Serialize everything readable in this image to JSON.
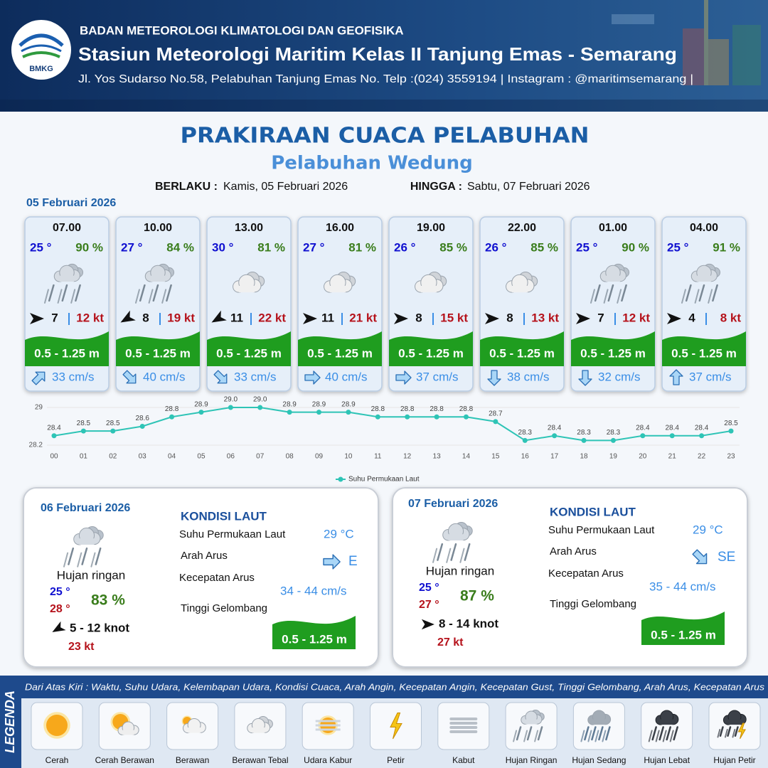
{
  "header": {
    "logo_text": "BMKG",
    "agency": "BADAN METEOROLOGI KLIMATOLOGI DAN GEOFISIKA",
    "station": "Stasiun Meteorologi Maritim Kelas II Tanjung Emas - Semarang",
    "address": "Jl. Yos Sudarso No.58, Pelabuhan Tanjung Emas No. Telp :(024) 3559194 | Instagram : @maritimsemarang |"
  },
  "title": "PRAKIRAAN CUACA PELABUHAN",
  "subtitle": "Pelabuhan Wedung",
  "validity": {
    "from_label": "BERLAKU :",
    "from": "Kamis, 05 Februari 2026",
    "to_label": "HINGGA :",
    "to": "Sabtu, 07 Februari 2026"
  },
  "today": {
    "date": "05 Februari 2026",
    "forecasts": [
      {
        "time": "07.00",
        "temperature": "25 °",
        "humidity": "90 %",
        "weather": "Hujan Ringan",
        "wind_direction": 0,
        "wind_speed": 7,
        "gust": "12 kt",
        "wave": "0.5 - 1.25 m",
        "current_direction": -45,
        "current_speed": "33 cm/s"
      },
      {
        "time": "10.00",
        "temperature": "27 °",
        "humidity": "84 %",
        "weather": "Hujan Ringan",
        "wind_direction": 150,
        "wind_speed": 8,
        "gust": "19 kt",
        "wave": "0.5 - 1.25 m",
        "current_direction": 45,
        "current_speed": "40 cm/s"
      },
      {
        "time": "13.00",
        "temperature": "30 °",
        "humidity": "81 %",
        "weather": "Berawan Tebal",
        "wind_direction": 150,
        "wind_speed": 11,
        "gust": "22 kt",
        "wave": "0.5 - 1.25 m",
        "current_direction": 45,
        "current_speed": "33 cm/s"
      },
      {
        "time": "16.00",
        "temperature": "27 °",
        "humidity": "81 %",
        "weather": "Berawan Tebal",
        "wind_direction": 0,
        "wind_speed": 11,
        "gust": "21 kt",
        "wave": "0.5 - 1.25 m",
        "current_direction": 0,
        "current_speed": "40 cm/s"
      },
      {
        "time": "19.00",
        "temperature": "26 °",
        "humidity": "85 %",
        "weather": "Berawan Tebal",
        "wind_direction": 0,
        "wind_speed": 8,
        "gust": "15 kt",
        "wave": "0.5 - 1.25 m",
        "current_direction": 0,
        "current_speed": "37 cm/s"
      },
      {
        "time": "22.00",
        "temperature": "26 °",
        "humidity": "85 %",
        "weather": "Berawan Tebal",
        "wind_direction": 0,
        "wind_speed": 8,
        "gust": "13 kt",
        "wave": "0.5 - 1.25 m",
        "current_direction": 90,
        "current_speed": "38 cm/s"
      },
      {
        "time": "01.00",
        "temperature": "25 °",
        "humidity": "90 %",
        "weather": "Hujan Ringan",
        "wind_direction": 0,
        "wind_speed": 7,
        "gust": "12 kt",
        "wave": "0.5 - 1.25 m",
        "current_direction": 90,
        "current_speed": "32 cm/s"
      },
      {
        "time": "04.00",
        "temperature": "25 °",
        "humidity": "91 %",
        "weather": "Hujan Ringan",
        "wind_direction": 0,
        "wind_speed": 4,
        "gust": "8 kt",
        "wave": "0.5 - 1.25 m",
        "current_direction": -90,
        "current_speed": "37 cm/s"
      }
    ]
  },
  "chart_data": {
    "type": "line",
    "categories": [
      "00",
      "01",
      "02",
      "03",
      "04",
      "05",
      "06",
      "07",
      "08",
      "09",
      "10",
      "11",
      "12",
      "13",
      "14",
      "15",
      "16",
      "17",
      "18",
      "19",
      "20",
      "21",
      "22",
      "23"
    ],
    "series": [
      {
        "name": "Suhu Permukaan Laut",
        "color": "#2ec4b6",
        "values": [
          28.4,
          28.5,
          28.5,
          28.6,
          28.8,
          28.9,
          29.0,
          29.0,
          28.9,
          28.9,
          28.9,
          28.8,
          28.8,
          28.8,
          28.8,
          28.7,
          28.3,
          28.4,
          28.3,
          28.3,
          28.4,
          28.4,
          28.4,
          28.5
        ],
        "value_labels": [
          "28.4",
          "28.5",
          "28.5",
          "28.6",
          "28.8",
          "28.9",
          "29.0",
          "29.0",
          "28.9",
          "28.9",
          "28.9",
          "28.8",
          "28.8",
          "28.8",
          "28.8",
          "28.7",
          "28.3",
          "28.4",
          "28.3",
          "28.3",
          "28.4",
          "28.4",
          "28.4",
          "28.5"
        ]
      }
    ],
    "ylim": [
      28.2,
      29
    ],
    "yticks": [
      28.2,
      29
    ],
    "grid": true,
    "legend": "bottom"
  },
  "outlook": [
    {
      "date": "06 Februari 2026",
      "weather": "Hujan ringan",
      "temperature_min": "25 °",
      "temperature_max": "28 °",
      "humidity": "83 %",
      "wind_direction": 150,
      "wind": "5 - 12 knot",
      "gust": "23 kt",
      "sea": {
        "heading": "KONDISI LAUT",
        "sst_label": "Suhu Permukaan Laut",
        "sst": "29 °C",
        "current_dir_label": "Arah Arus",
        "current_direction": 0,
        "current_dir": "E",
        "current_speed_label": "Kecepatan Arus",
        "current_speed": "34 - 44 cm/s",
        "wave_label": "Tinggi Gelombang",
        "wave": "0.5 - 1.25 m"
      }
    },
    {
      "date": "07 Februari 2026",
      "weather": "Hujan ringan",
      "temperature_min": "25 °",
      "temperature_max": "27 °",
      "humidity": "87 %",
      "wind_direction": 0,
      "wind": "8 - 14 knot",
      "gust": "27 kt",
      "sea": {
        "heading": "KONDISI LAUT",
        "sst_label": "Suhu Permukaan Laut",
        "sst": "29 °C",
        "current_dir_label": "Arah Arus",
        "current_direction": 45,
        "current_dir": "SE",
        "current_speed_label": "Kecepatan Arus",
        "current_speed": "35 - 44 cm/s",
        "wave_label": "Tinggi Gelombang",
        "wave": "0.5 - 1.25 m"
      }
    }
  ],
  "legend": {
    "title": "LEGENDA",
    "description": "Dari Atas Kiri : Waktu, Suhu Udara, Kelembapan Udara, Kondisi Cuaca, Arah Angin, Kecepatan Angin, Kecepatan Gust, Tinggi Gelombang, Arah Arus, Kecepatan Arus",
    "items": [
      "Cerah",
      "Cerah Berawan",
      "Berawan",
      "Berawan Tebal",
      "Udara Kabur",
      "Petir",
      "Kabut",
      "Hujan Ringan",
      "Hujan Sedang",
      "Hujan Lebat",
      "Hujan Petir"
    ]
  }
}
